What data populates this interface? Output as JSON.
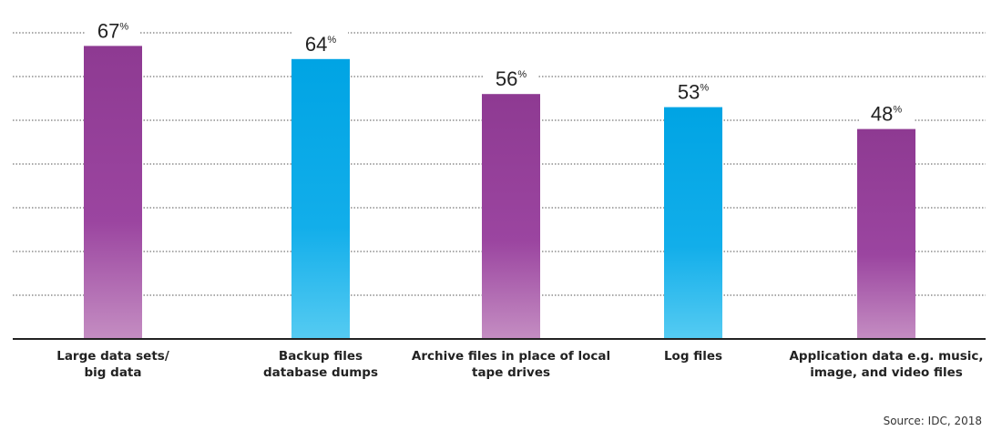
{
  "chart_data": {
    "type": "bar",
    "categories": [
      [
        "Large data sets/",
        "big data"
      ],
      [
        "Backup files",
        "database dumps"
      ],
      [
        "Archive files in place of local",
        "tape drives"
      ],
      [
        "Log files"
      ],
      [
        "Application data e.g. music,",
        "image, and video files"
      ]
    ],
    "values": [
      67,
      64,
      56,
      53,
      48
    ],
    "value_suffix": "%",
    "bar_colors": [
      "purple",
      "blue",
      "purple",
      "blue",
      "purple"
    ],
    "ylim": [
      0,
      70
    ],
    "grid": true,
    "grid_style": "dotted",
    "source": "Source: IDC, 2018"
  },
  "colors": {
    "purple_top": "#8E3A92",
    "purple_bottom": "#C48DC2",
    "blue_top": "#00A4E4",
    "blue_bottom": "#55CBF2",
    "grid": "#555555",
    "axis": "#222222"
  }
}
